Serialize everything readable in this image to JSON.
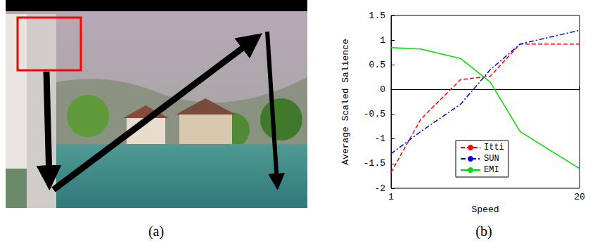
{
  "panel_labels": [
    "(a)",
    "(b)"
  ],
  "chart_data": {
    "type": "line",
    "x_label": "Speed",
    "y_label": "Average Scaled Salience",
    "x": [
      1,
      4,
      8,
      11,
      14,
      20
    ],
    "xlim": [
      1,
      20
    ],
    "xticks": [
      1,
      20
    ],
    "ylim": [
      -2,
      1.5
    ],
    "yticks": [
      -2,
      -1.5,
      -1,
      -0.5,
      0,
      0.5,
      1,
      1.5
    ],
    "grid": false,
    "legend": "lower center",
    "series": [
      {
        "name": "Itti",
        "color": "#ff0000",
        "line_style": "dashed",
        "values": [
          -1.68,
          -0.6,
          0.2,
          0.27,
          0.92,
          0.92
        ]
      },
      {
        "name": "SUN",
        "color": "#0000ff",
        "line_style": "dashdot",
        "values": [
          -1.3,
          -0.85,
          -0.3,
          0.4,
          0.92,
          1.2
        ]
      },
      {
        "name": "EMI",
        "color": "#00dd00",
        "line_style": "solid",
        "values": [
          0.85,
          0.82,
          0.63,
          0.15,
          -0.85,
          -1.6
        ]
      }
    ]
  }
}
